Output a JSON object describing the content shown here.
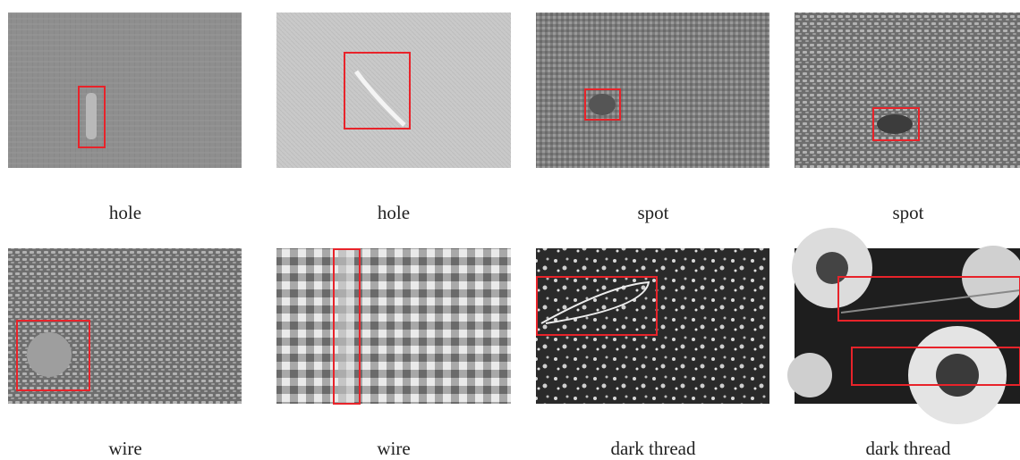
{
  "panels": [
    {
      "label": "hole"
    },
    {
      "label": "hole"
    },
    {
      "label": "spot"
    },
    {
      "label": "spot"
    },
    {
      "label": "wire"
    },
    {
      "label": "wire"
    },
    {
      "label": "dark thread"
    },
    {
      "label": "dark thread"
    }
  ]
}
